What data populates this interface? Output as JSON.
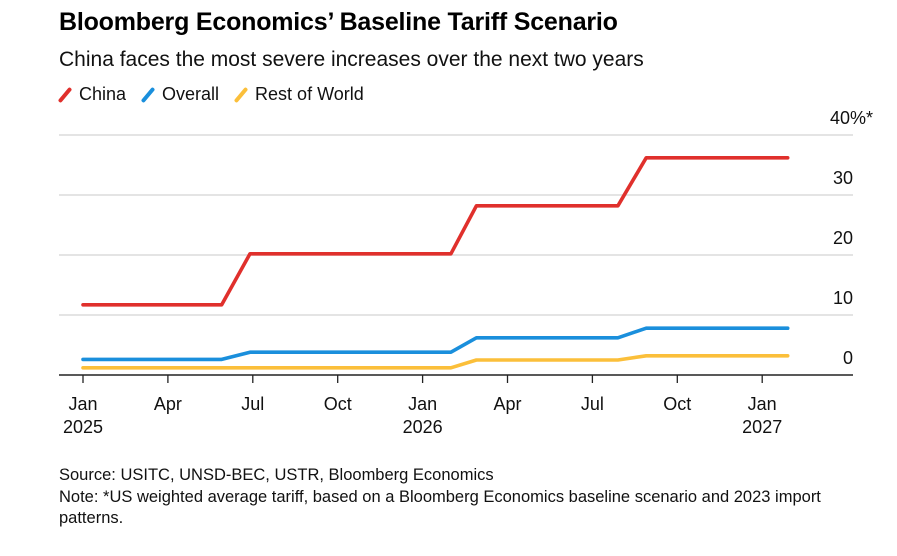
{
  "chart_data": {
    "type": "line",
    "title": "Bloomberg Economics’ Baseline Tariff Scenario",
    "subtitle": "China faces the most severe increases over the next two years",
    "x_unit": "months since Jan 2025",
    "xlim": [
      0,
      24.9
    ],
    "ylim": [
      0,
      40
    ],
    "yticks": [
      "0",
      "10",
      "20",
      "30",
      "40"
    ],
    "y_unit_suffix": "%*",
    "xticks": [
      {
        "x": 0,
        "label": "Jan",
        "year": "2025"
      },
      {
        "x": 3,
        "label": "Apr",
        "year": ""
      },
      {
        "x": 6,
        "label": "Jul",
        "year": ""
      },
      {
        "x": 9,
        "label": "Oct",
        "year": ""
      },
      {
        "x": 12,
        "label": "Jan",
        "year": "2026"
      },
      {
        "x": 15,
        "label": "Apr",
        "year": ""
      },
      {
        "x": 18,
        "label": "Jul",
        "year": ""
      },
      {
        "x": 21,
        "label": "Oct",
        "year": ""
      },
      {
        "x": 24,
        "label": "Jan",
        "year": "2027"
      }
    ],
    "grid": true,
    "legend_position": "top-left",
    "series": [
      {
        "name": "China",
        "color": "#e0302c",
        "x": [
          0,
          4.9,
          5.9,
          13.0,
          13.9,
          18.9,
          19.9,
          24.9
        ],
        "y": [
          11.7,
          11.7,
          20.2,
          20.2,
          28.2,
          28.2,
          36.2,
          36.2
        ]
      },
      {
        "name": "Overall",
        "color": "#1a8fdc",
        "x": [
          0,
          4.9,
          5.9,
          13.0,
          13.9,
          18.9,
          19.9,
          24.9
        ],
        "y": [
          2.6,
          2.6,
          3.8,
          3.8,
          6.2,
          6.2,
          7.8,
          7.8
        ]
      },
      {
        "name": "Rest of World",
        "color": "#fbbf3a",
        "x": [
          0,
          13.0,
          13.9,
          18.9,
          19.9,
          24.9
        ],
        "y": [
          1.2,
          1.2,
          2.5,
          2.5,
          3.2,
          3.2
        ]
      }
    ]
  },
  "footer": {
    "source": "Source: USITC, UNSD-BEC, USTR, Bloomberg Economics",
    "note": "Note: *US weighted average tariff, based on a Bloomberg Economics baseline scenario and 2023 import patterns."
  }
}
